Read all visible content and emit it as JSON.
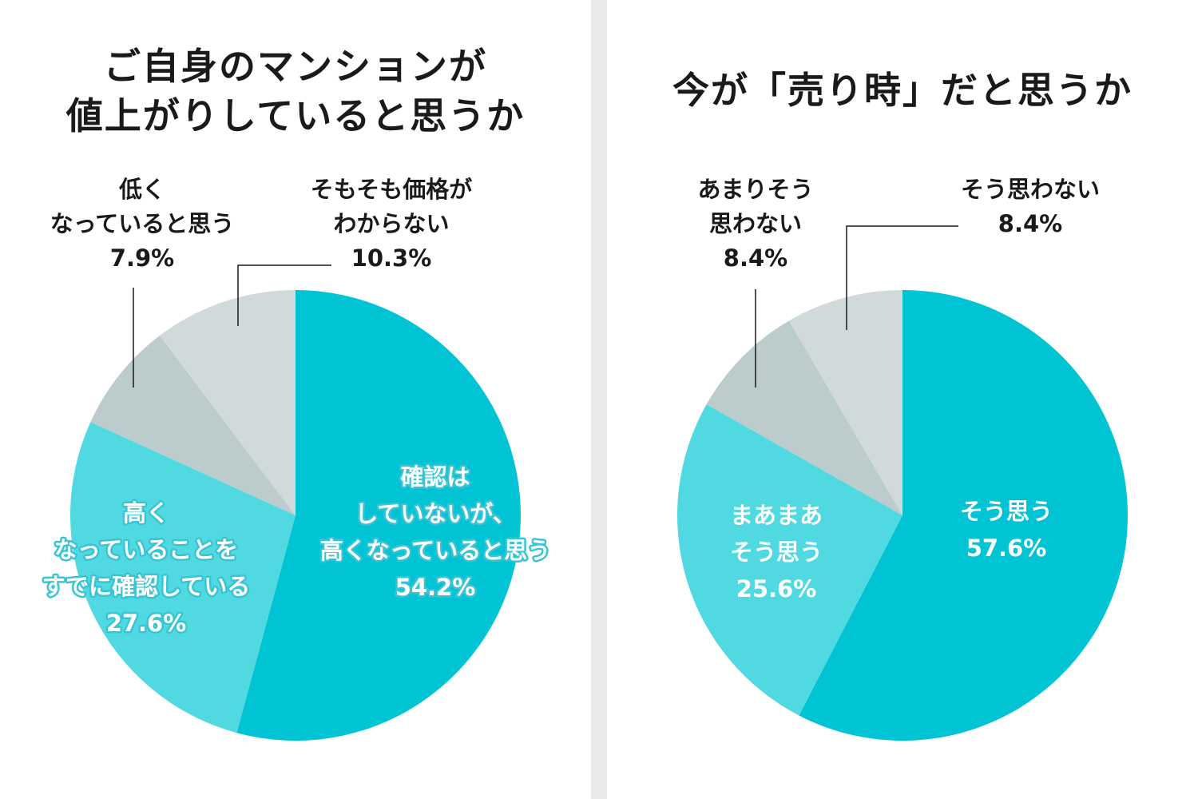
{
  "colors": {
    "background": "#e9e9e9",
    "panel": "#ffffff",
    "teal_dark": "#00c3d4",
    "teal_light": "#50d9e0",
    "gray_mid": "#bccbcc",
    "gray_light": "#d1dadb"
  },
  "chart_data": [
    {
      "type": "pie",
      "title": [
        "ご自身のマンションが",
        "値上がりしていると思うか"
      ],
      "slices": [
        {
          "label": [
            "確認は",
            "していないが、",
            "高くなっていると思う"
          ],
          "value": 54.2,
          "value_label": "54.2%",
          "color": "#00c3d4"
        },
        {
          "label": [
            "高く",
            "なっていることを",
            "すでに確認している"
          ],
          "value": 27.6,
          "value_label": "27.6%",
          "color": "#50d9e0"
        },
        {
          "label": [
            "低く",
            "なっていると思う"
          ],
          "value": 7.9,
          "value_label": "7.9%",
          "color": "#bccbcc"
        },
        {
          "label": [
            "そもそも価格が",
            "わからない"
          ],
          "value": 10.3,
          "value_label": "10.3%",
          "color": "#d1dadb"
        }
      ]
    },
    {
      "type": "pie",
      "title": [
        "今が「売り時」だと思うか"
      ],
      "slices": [
        {
          "label": [
            "そう思う"
          ],
          "value": 57.6,
          "value_label": "57.6%",
          "color": "#00c3d4"
        },
        {
          "label": [
            "まあまあ",
            "そう思う"
          ],
          "value": 25.6,
          "value_label": "25.6%",
          "color": "#50d9e0"
        },
        {
          "label": [
            "あまりそう",
            "思わない"
          ],
          "value": 8.4,
          "value_label": "8.4%",
          "color": "#bccbcc"
        },
        {
          "label": [
            "そう思わない"
          ],
          "value": 8.4,
          "value_label": "8.4%",
          "color": "#d1dadb"
        }
      ]
    }
  ]
}
